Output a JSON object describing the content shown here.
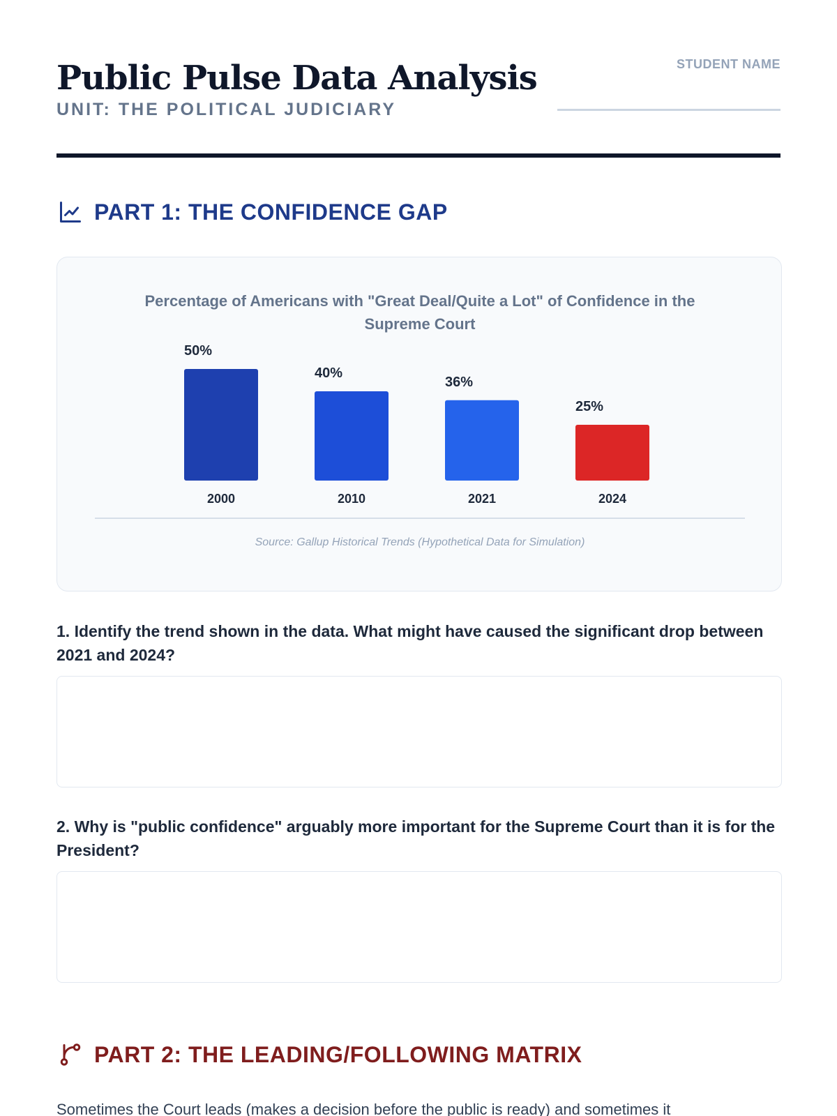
{
  "header": {
    "title": "Public Pulse Data Analysis",
    "subtitle": "UNIT: THE POLITICAL JUDICIARY",
    "student_name_label": "STUDENT NAME"
  },
  "part1": {
    "heading": "PART 1: THE CONFIDENCE GAP",
    "icon": "line-chart-icon"
  },
  "chart_data": {
    "type": "bar",
    "title": "Percentage of Americans with \"Great Deal/Quite a Lot\" of Confidence in the Supreme Court",
    "title_lines": [
      "Percentage of Americans with \"Great Deal/Quite a Lot\" of Confidence in the",
      "Supreme Court"
    ],
    "categories": [
      "2000",
      "2010",
      "2021",
      "2024"
    ],
    "values": [
      50,
      40,
      36,
      25
    ],
    "value_labels": [
      "50%",
      "40%",
      "36%",
      "25%"
    ],
    "colors": [
      "#1e40af",
      "#1d4ed8",
      "#2563eb",
      "#dc2626"
    ],
    "source": "Source: Gallup Historical Trends (Hypothetical Data for Simulation)",
    "xlabel": "",
    "ylabel": "",
    "grid": false
  },
  "questions": [
    {
      "text": "1. Identify the trend shown in the data. What might have caused the significant drop between 2021 and 2024?"
    },
    {
      "text": "2. Why is \"public confidence\" arguably more important for the Supreme Court than it is for the President?"
    }
  ],
  "part2": {
    "heading": "PART 2: THE LEADING/FOLLOWING MATRIX",
    "icon": "branch-icon",
    "intro": "Sometimes the Court leads (makes a decision before the public is ready) and sometimes it"
  }
}
